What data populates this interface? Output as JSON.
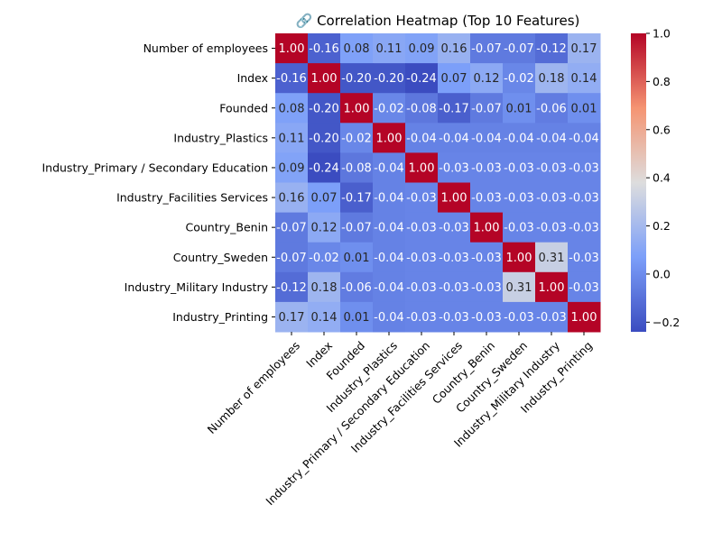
{
  "chart_data": {
    "type": "heatmap",
    "title": "🔗 Correlation Heatmap (Top 10 Features)",
    "xlabel": "",
    "ylabel": "",
    "colormap": "coolwarm",
    "labels": [
      "Number of employees",
      "Index",
      "Founded",
      "Industry_Plastics",
      "Industry_Primary / Secondary Education",
      "Industry_Facilities Services",
      "Country_Benin",
      "Country_Sweden",
      "Industry_Military Industry",
      "Industry_Printing"
    ],
    "matrix": [
      [
        1.0,
        -0.16,
        0.08,
        0.11,
        0.09,
        0.16,
        -0.07,
        -0.07,
        -0.12,
        0.17
      ],
      [
        -0.16,
        1.0,
        -0.2,
        -0.2,
        -0.24,
        0.07,
        0.12,
        -0.02,
        0.18,
        0.14
      ],
      [
        0.08,
        -0.2,
        1.0,
        -0.02,
        -0.08,
        -0.17,
        -0.07,
        0.01,
        -0.06,
        0.01
      ],
      [
        0.11,
        -0.2,
        -0.02,
        1.0,
        -0.04,
        -0.04,
        -0.04,
        -0.04,
        -0.04,
        -0.04
      ],
      [
        0.09,
        -0.24,
        -0.08,
        -0.04,
        1.0,
        -0.03,
        -0.03,
        -0.03,
        -0.03,
        -0.03
      ],
      [
        0.16,
        0.07,
        -0.17,
        -0.04,
        -0.03,
        1.0,
        -0.03,
        -0.03,
        -0.03,
        -0.03
      ],
      [
        -0.07,
        0.12,
        -0.07,
        -0.04,
        -0.03,
        -0.03,
        1.0,
        -0.03,
        -0.03,
        -0.03
      ],
      [
        -0.07,
        -0.02,
        0.01,
        -0.04,
        -0.03,
        -0.03,
        -0.03,
        1.0,
        0.31,
        -0.03
      ],
      [
        -0.12,
        0.18,
        -0.06,
        -0.04,
        -0.03,
        -0.03,
        -0.03,
        0.31,
        1.0,
        -0.03
      ],
      [
        0.17,
        0.14,
        0.01,
        -0.04,
        -0.03,
        -0.03,
        -0.03,
        -0.03,
        -0.03,
        1.0
      ]
    ],
    "value_format": "2 decimals",
    "colorbar": {
      "range": [
        -0.24,
        1.0
      ],
      "ticks": [
        -0.2,
        0.0,
        0.2,
        0.4,
        0.6,
        0.8,
        1.0
      ],
      "tick_labels": [
        "−0.2",
        "0.0",
        "0.2",
        "0.4",
        "0.6",
        "0.8",
        "1.0"
      ]
    },
    "grid": false,
    "legend": "colorbar-right"
  }
}
